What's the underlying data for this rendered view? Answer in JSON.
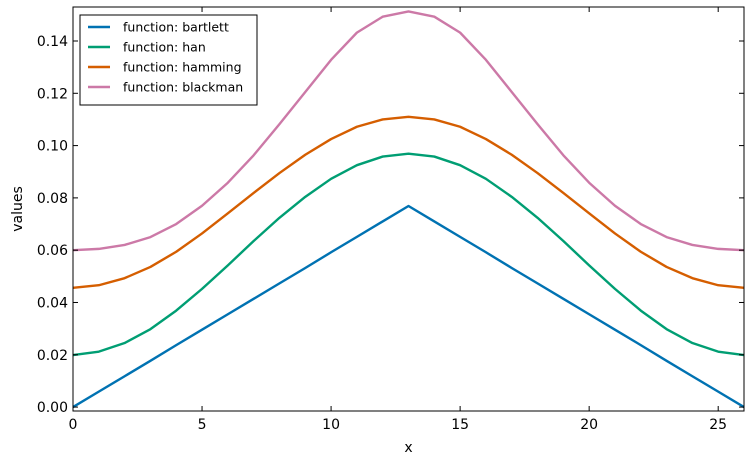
{
  "chart_data": {
    "type": "line",
    "xlabel": "x",
    "ylabel": "values",
    "xlim": [
      0,
      26
    ],
    "ylim": [
      -0.0015,
      0.153
    ],
    "xticks": [
      0,
      5,
      10,
      15,
      20,
      25
    ],
    "xtick_labels": [
      "0",
      "5",
      "10",
      "15",
      "20",
      "25"
    ],
    "yticks": [
      0.0,
      0.02,
      0.04,
      0.06,
      0.08,
      0.1,
      0.12,
      0.14
    ],
    "ytick_labels": [
      "0.00",
      "0.02",
      "0.04",
      "0.06",
      "0.08",
      "0.10",
      "0.12",
      "0.14"
    ],
    "grid": false,
    "legend_position": "top-left",
    "x": [
      0,
      1,
      2,
      3,
      4,
      5,
      6,
      7,
      8,
      9,
      10,
      11,
      12,
      13,
      14,
      15,
      16,
      17,
      18,
      19,
      20,
      21,
      22,
      23,
      24,
      25,
      26
    ],
    "series": [
      {
        "name": "function: bartlett",
        "color": "#0072B2",
        "values": [
          0.0,
          0.0059,
          0.0118,
          0.0177,
          0.0237,
          0.0296,
          0.0355,
          0.0414,
          0.0473,
          0.0532,
          0.0592,
          0.0651,
          0.071,
          0.0769,
          0.071,
          0.0651,
          0.0592,
          0.0532,
          0.0473,
          0.0414,
          0.0355,
          0.0296,
          0.0237,
          0.0177,
          0.0118,
          0.0059,
          0.0
        ]
      },
      {
        "name": "function: han",
        "color": "#009E73",
        "values": [
          0.0199,
          0.0212,
          0.0245,
          0.0298,
          0.0369,
          0.0452,
          0.0542,
          0.0635,
          0.0724,
          0.0804,
          0.0873,
          0.0925,
          0.0958,
          0.0969,
          0.0958,
          0.0925,
          0.0873,
          0.0804,
          0.0724,
          0.0635,
          0.0542,
          0.0452,
          0.0369,
          0.0298,
          0.0245,
          0.0212,
          0.0199
        ]
      },
      {
        "name": "function: hamming",
        "color": "#D55E00",
        "values": [
          0.0456,
          0.0466,
          0.0493,
          0.0536,
          0.0594,
          0.0664,
          0.0741,
          0.0819,
          0.0895,
          0.0965,
          0.1025,
          0.1072,
          0.11,
          0.111,
          0.11,
          0.1072,
          0.1025,
          0.0965,
          0.0895,
          0.0819,
          0.0741,
          0.0664,
          0.0594,
          0.0536,
          0.0493,
          0.0466,
          0.0456
        ]
      },
      {
        "name": "function: blackman",
        "color": "#CC79A7",
        "values": [
          0.06,
          0.0605,
          0.062,
          0.065,
          0.07,
          0.077,
          0.0858,
          0.0963,
          0.1082,
          0.1205,
          0.1328,
          0.1432,
          0.1493,
          0.1513,
          0.1493,
          0.1432,
          0.1328,
          0.1205,
          0.1082,
          0.0963,
          0.0858,
          0.077,
          0.07,
          0.065,
          0.062,
          0.0605,
          0.06
        ]
      }
    ]
  }
}
